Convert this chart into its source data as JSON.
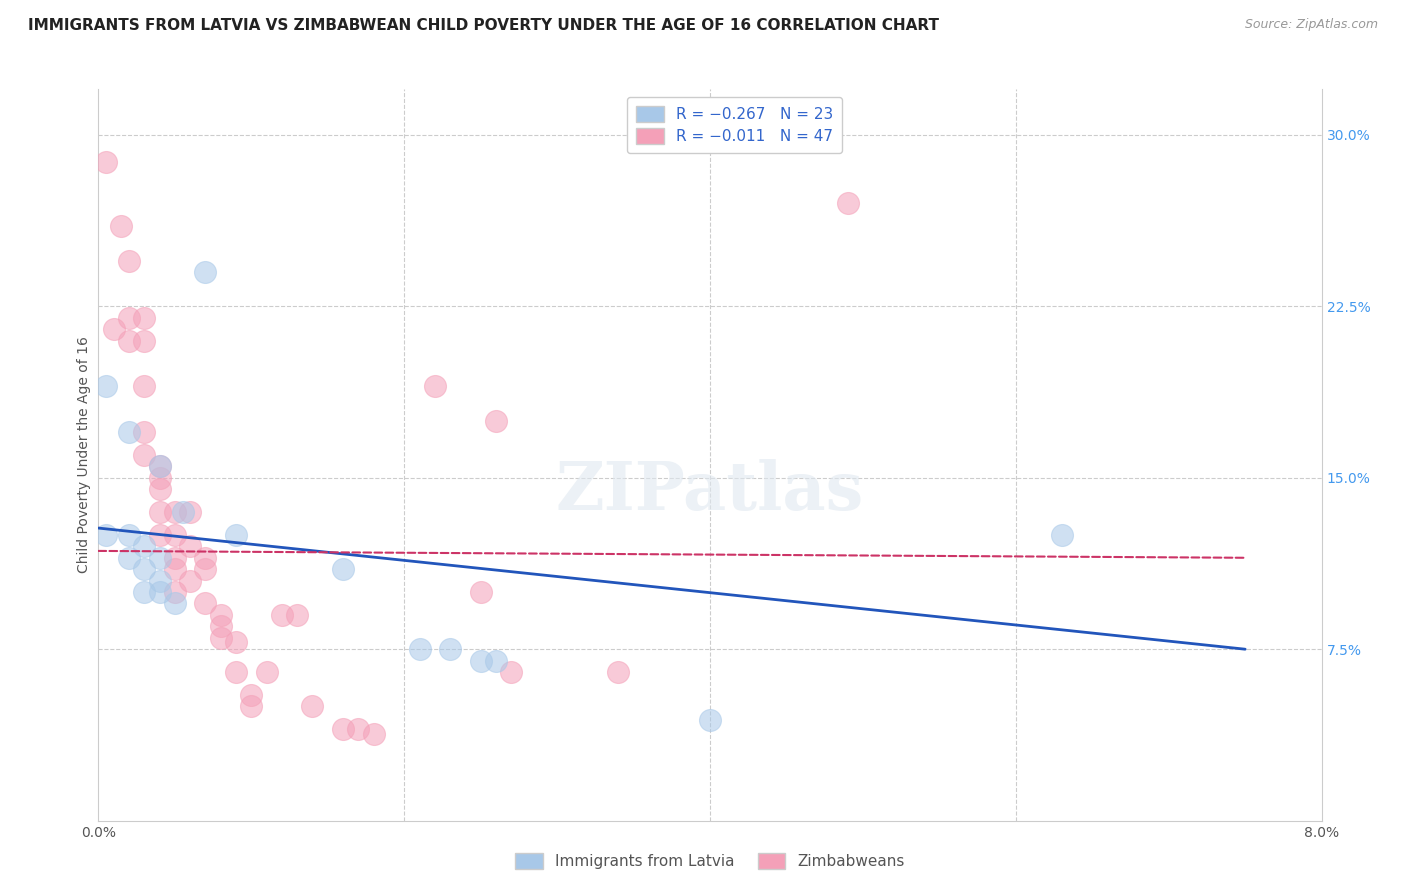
{
  "title": "IMMIGRANTS FROM LATVIA VS ZIMBABWEAN CHILD POVERTY UNDER THE AGE OF 16 CORRELATION CHART",
  "source": "Source: ZipAtlas.com",
  "ylabel": "Child Poverty Under the Age of 16",
  "xlim": [
    0.0,
    0.08
  ],
  "ylim": [
    0.0,
    0.32
  ],
  "xticks": [
    0.0,
    0.01,
    0.02,
    0.03,
    0.04,
    0.05,
    0.06,
    0.07,
    0.08
  ],
  "xtick_labels": [
    "0.0%",
    "",
    "",
    "",
    "",
    "",
    "",
    "",
    "8.0%"
  ],
  "yticks_right": [
    0.075,
    0.15,
    0.225,
    0.3
  ],
  "ytick_labels_right": [
    "7.5%",
    "15.0%",
    "22.5%",
    "30.0%"
  ],
  "blue_scatter_x": [
    0.0005,
    0.002,
    0.004,
    0.0055,
    0.002,
    0.0005,
    0.003,
    0.002,
    0.003,
    0.004,
    0.004,
    0.003,
    0.004,
    0.005,
    0.007,
    0.009,
    0.016,
    0.021,
    0.023,
    0.025,
    0.026,
    0.063,
    0.04
  ],
  "blue_scatter_y": [
    0.19,
    0.17,
    0.155,
    0.135,
    0.125,
    0.125,
    0.12,
    0.115,
    0.11,
    0.115,
    0.105,
    0.1,
    0.1,
    0.095,
    0.24,
    0.125,
    0.11,
    0.075,
    0.075,
    0.07,
    0.07,
    0.125,
    0.044
  ],
  "pink_scatter_x": [
    0.0005,
    0.001,
    0.0015,
    0.002,
    0.002,
    0.002,
    0.003,
    0.003,
    0.003,
    0.003,
    0.003,
    0.004,
    0.004,
    0.004,
    0.004,
    0.004,
    0.005,
    0.005,
    0.005,
    0.005,
    0.005,
    0.006,
    0.006,
    0.006,
    0.007,
    0.007,
    0.007,
    0.008,
    0.008,
    0.008,
    0.009,
    0.009,
    0.01,
    0.01,
    0.011,
    0.012,
    0.013,
    0.014,
    0.016,
    0.017,
    0.018,
    0.022,
    0.025,
    0.026,
    0.027,
    0.034,
    0.049
  ],
  "pink_scatter_y": [
    0.288,
    0.215,
    0.26,
    0.245,
    0.21,
    0.22,
    0.22,
    0.21,
    0.19,
    0.17,
    0.16,
    0.155,
    0.15,
    0.145,
    0.135,
    0.125,
    0.135,
    0.125,
    0.115,
    0.11,
    0.1,
    0.135,
    0.12,
    0.105,
    0.115,
    0.11,
    0.095,
    0.09,
    0.085,
    0.08,
    0.078,
    0.065,
    0.055,
    0.05,
    0.065,
    0.09,
    0.09,
    0.05,
    0.04,
    0.04,
    0.038,
    0.19,
    0.1,
    0.175,
    0.065,
    0.065,
    0.27
  ],
  "blue_line_x": [
    0.0,
    0.075
  ],
  "blue_line_y": [
    0.128,
    0.075
  ],
  "pink_line_x": [
    0.0,
    0.075
  ],
  "pink_line_y": [
    0.118,
    0.115
  ],
  "scatter_size": 250,
  "scatter_alpha": 0.55,
  "blue_color": "#a8c8e8",
  "pink_color": "#f4a0b8",
  "blue_line_color": "#2255bb",
  "pink_line_color": "#cc3366",
  "grid_color": "#cccccc",
  "bg_color": "#ffffff",
  "title_fontsize": 11,
  "source_fontsize": 9,
  "label_fontsize": 10,
  "tick_fontsize": 10,
  "legend_fontsize": 11
}
